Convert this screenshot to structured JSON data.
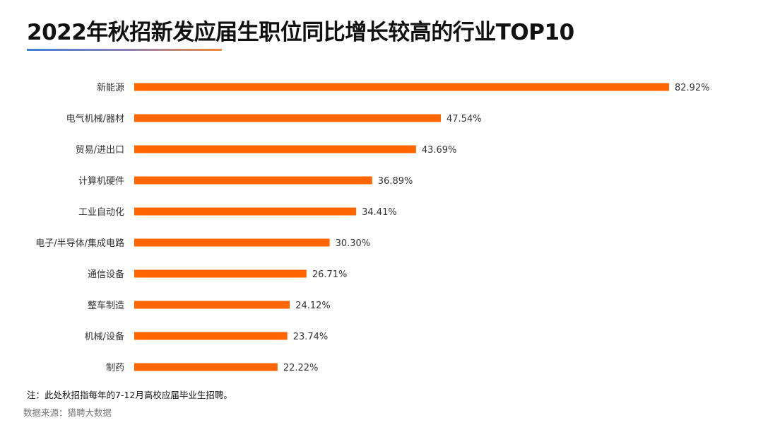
{
  "chart_data": {
    "type": "bar",
    "orientation": "horizontal",
    "title": "2022年秋招新发应届生职位同比增长较高的行业TOP10",
    "categories": [
      "新能源",
      "电气机械/器材",
      "贸易/进出口",
      "计算机硬件",
      "工业自动化",
      "电子/半导体/集成电路",
      "通信设备",
      "整车制造",
      "机械/设备",
      "制药"
    ],
    "values": [
      82.92,
      47.54,
      43.69,
      36.89,
      34.41,
      30.3,
      26.71,
      24.12,
      23.74,
      22.22
    ],
    "value_labels": [
      "82.92%",
      "47.54%",
      "43.69%",
      "36.89%",
      "34.41%",
      "30.30%",
      "26.71%",
      "24.12%",
      "23.74%",
      "22.22%"
    ],
    "unit": "%",
    "bar_color": "#ff6600",
    "grid": false,
    "legend": "none"
  },
  "note": "注：此处秋招指每年的7-12月高校应届毕业生招聘。",
  "source": "数据来源：猎聘大数据"
}
